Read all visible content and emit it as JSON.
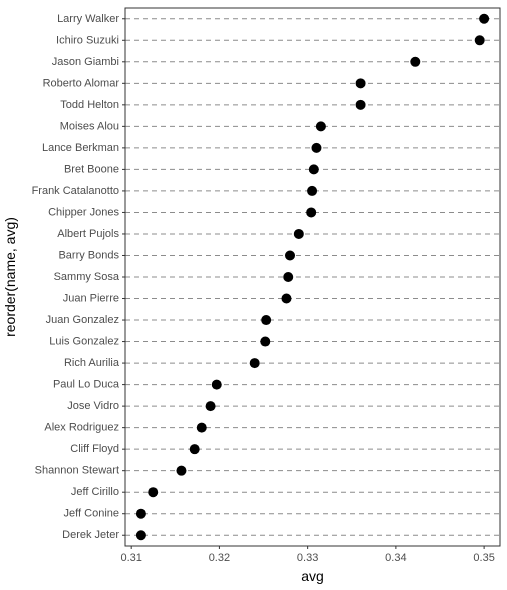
{
  "chart_data": {
    "type": "scatter",
    "xlabel": "avg",
    "ylabel": "reorder(name, avg)",
    "xlim": [
      0.3093,
      0.3518
    ],
    "xticks": [
      0.31,
      0.32,
      0.33,
      0.34,
      0.35
    ],
    "xtick_labels": [
      "0.31",
      "0.32",
      "0.33",
      "0.34",
      "0.35"
    ],
    "grid": "horizontal dashed",
    "point_color": "#000000",
    "points": [
      {
        "name": "Larry Walker",
        "avg": 0.35
      },
      {
        "name": "Ichiro Suzuki",
        "avg": 0.3495
      },
      {
        "name": "Jason Giambi",
        "avg": 0.3422
      },
      {
        "name": "Roberto Alomar",
        "avg": 0.336
      },
      {
        "name": "Todd Helton",
        "avg": 0.336
      },
      {
        "name": "Moises Alou",
        "avg": 0.3315
      },
      {
        "name": "Lance Berkman",
        "avg": 0.331
      },
      {
        "name": "Bret Boone",
        "avg": 0.3307
      },
      {
        "name": "Frank Catalanotto",
        "avg": 0.3305
      },
      {
        "name": "Chipper Jones",
        "avg": 0.3304
      },
      {
        "name": "Albert Pujols",
        "avg": 0.329
      },
      {
        "name": "Barry Bonds",
        "avg": 0.328
      },
      {
        "name": "Sammy Sosa",
        "avg": 0.3278
      },
      {
        "name": "Juan Pierre",
        "avg": 0.3276
      },
      {
        "name": "Juan Gonzalez",
        "avg": 0.3253
      },
      {
        "name": "Luis Gonzalez",
        "avg": 0.3252
      },
      {
        "name": "Rich Aurilia",
        "avg": 0.324
      },
      {
        "name": "Paul Lo Duca",
        "avg": 0.3197
      },
      {
        "name": "Jose Vidro",
        "avg": 0.319
      },
      {
        "name": "Alex Rodriguez",
        "avg": 0.318
      },
      {
        "name": "Cliff Floyd",
        "avg": 0.3172
      },
      {
        "name": "Shannon Stewart",
        "avg": 0.3157
      },
      {
        "name": "Jeff Cirillo",
        "avg": 0.3125
      },
      {
        "name": "Jeff Conine",
        "avg": 0.3111
      },
      {
        "name": "Derek Jeter",
        "avg": 0.3111
      }
    ]
  }
}
